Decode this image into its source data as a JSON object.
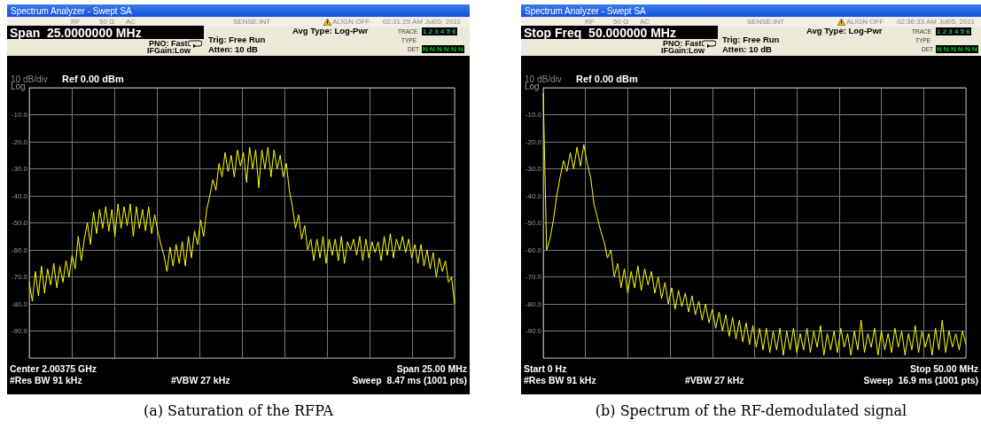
{
  "chart_data": [
    {
      "type": "line",
      "title": "(a) Saturation of the RFPA",
      "ylabel": "Log",
      "annotations": [
        "Spectrum Analyzer - Swept SA",
        "RF",
        "50 Ω",
        "AC",
        "SENSE:INT",
        "ALIGN OFF",
        "02:31:25 AM Jul05, 2011",
        "Span  25.0000000 MHz",
        "PNO: Fast",
        "IFGain:Low",
        "Trig: Free Run",
        "Atten: 10 dB",
        "Avg Type: Log-Pwr",
        "TRACE",
        "1 2 3 4 5 6",
        "TYPE",
        "DET",
        "N N N N N N",
        "10 dB/div",
        "Ref 0.00 dBm",
        "Center 2.00375 GHz",
        "Span 25.00 MHz",
        "#Res BW 91 kHz",
        "#VBW 27 kHz",
        "Sweep  8.47 ms (1001 pts)"
      ],
      "categories": [
        null,
        null,
        null,
        null,
        null,
        null,
        null,
        null,
        null,
        null,
        null,
        null,
        null,
        null,
        null,
        null,
        null,
        null,
        null,
        null,
        null,
        null,
        null,
        null,
        null,
        null,
        null,
        null,
        null,
        null,
        null,
        null,
        null,
        null,
        null,
        null,
        null,
        null,
        null,
        null,
        null,
        null,
        null,
        null,
        null,
        null,
        null,
        null,
        null,
        null,
        null,
        null,
        null,
        null,
        null,
        null,
        null,
        null,
        null,
        null,
        null,
        null,
        null,
        null,
        null,
        null,
        null,
        null,
        null,
        null,
        null,
        null,
        null,
        null,
        null,
        null,
        null,
        null,
        null,
        null,
        null,
        null,
        null,
        null,
        null,
        null,
        null,
        null,
        null,
        null,
        null,
        null,
        null,
        null,
        null,
        null,
        null,
        null,
        null,
        null,
        null,
        null,
        null,
        null,
        null,
        null,
        null,
        null,
        null,
        null,
        null,
        null,
        null,
        null,
        null,
        null,
        null,
        null,
        null,
        null,
        null,
        null,
        null,
        null,
        null,
        null,
        null,
        null,
        null,
        null,
        null,
        null,
        null,
        null,
        null,
        null,
        null,
        null,
        null,
        null
      ],
      "series": [
        {
          "color": "#ffff00",
          "values": [
            -72,
            -79,
            -68,
            -77,
            -66,
            -76,
            -67,
            -73,
            -65,
            -74,
            -66,
            -72,
            -64,
            -70,
            -62,
            -67,
            -55,
            -64,
            -56,
            -50,
            -58,
            -46,
            -54,
            -45,
            -52,
            -44,
            -53,
            -45,
            -55,
            -43,
            -52,
            -44,
            -51,
            -43,
            -55,
            -44,
            -52,
            -45,
            -53,
            -44,
            -54,
            -47,
            -53,
            -58,
            -62,
            -68,
            -59,
            -66,
            -58,
            -65,
            -57,
            -66,
            -55,
            -63,
            -53,
            -58,
            -49,
            -55,
            -45,
            -40,
            -34,
            -38,
            -28,
            -33,
            -24,
            -31,
            -25,
            -33,
            -23,
            -29,
            -24,
            -35,
            -22,
            -30,
            -23,
            -37,
            -23,
            -30,
            -22,
            -33,
            -23,
            -30,
            -25,
            -33,
            -28,
            -38,
            -44,
            -52,
            -47,
            -56,
            -51,
            -60,
            -56,
            -64,
            -56,
            -63,
            -55,
            -65,
            -56,
            -62,
            -56,
            -64,
            -55,
            -65,
            -57,
            -60,
            -56,
            -62,
            -55,
            -64,
            -56,
            -63,
            -57,
            -61,
            -57,
            -64,
            -55,
            -62,
            -54,
            -63,
            -56,
            -60,
            -55,
            -61,
            -56,
            -63,
            -58,
            -65,
            -58,
            -66,
            -60,
            -67,
            -61,
            -70,
            -63,
            -68,
            -64,
            -72,
            -70,
            -80
          ]
        }
      ],
      "ylim": [
        -100,
        0
      ],
      "yticks": [
        {
          "value": 0,
          "label": null
        },
        {
          "value": -10,
          "label": "-10.0"
        },
        {
          "value": -20,
          "label": "-20.0"
        },
        {
          "value": -30,
          "label": "-30.0"
        },
        {
          "value": -40,
          "label": "-40.0"
        },
        {
          "value": -50,
          "label": "-50.0"
        },
        {
          "value": -60,
          "label": "-60.0"
        },
        {
          "value": -70,
          "label": "-70.0"
        },
        {
          "value": -80,
          "label": "-80.0"
        },
        {
          "value": -90,
          "label": "-90.0"
        },
        {
          "value": -100,
          "label": null
        }
      ],
      "tick_labels": "y",
      "grid": true,
      "line_style": "solid"
    },
    {
      "type": "line",
      "title": "(b) Spectrum of the RF-demodulated signal",
      "ylabel": "Log",
      "annotations": [
        "Spectrum Analyzer - Swept SA",
        "RF",
        "50 Ω",
        "AC",
        "SENSE:INT",
        "ALIGN OFF",
        "02:36:33 AM Jul05, 2011",
        "Stop Freq  50.000000 MHz",
        "PNO: Fast",
        "IFGain:Low",
        "Trig: Free Run",
        "Atten: 10 dB",
        "Avg Type: Log-Pwr",
        "TRACE",
        "1 2 3 4 5 6",
        "TYPE",
        "DET",
        "N N N N N N",
        "10 dB/div",
        "Ref 0.00 dBm",
        "Start 0 Hz",
        "Stop 50.00 MHz",
        "#Res BW 91 kHz",
        "#VBW 27 kHz",
        "Sweep  16.9 ms (1001 pts)"
      ],
      "categories": [
        null,
        null,
        null,
        null,
        null,
        null,
        null,
        null,
        null,
        null,
        null,
        null,
        null,
        null,
        null,
        null,
        null,
        null,
        null,
        null,
        null,
        null,
        null,
        null,
        null,
        null,
        null,
        null,
        null,
        null,
        null,
        null,
        null,
        null,
        null,
        null,
        null,
        null,
        null,
        null,
        null,
        null,
        null,
        null,
        null,
        null,
        null,
        null,
        null,
        null,
        null,
        null,
        null,
        null,
        null,
        null,
        null,
        null,
        null,
        null,
        null,
        null,
        null,
        null,
        null,
        null,
        null,
        null,
        null,
        null,
        null,
        null,
        null,
        null,
        null,
        null,
        null,
        null,
        null,
        null,
        null,
        null,
        null,
        null,
        null,
        null,
        null,
        null,
        null,
        null,
        null,
        null,
        null,
        null,
        null,
        null,
        null,
        null,
        null,
        null,
        null,
        null,
        null,
        null,
        null,
        null,
        null,
        null,
        null,
        null,
        null,
        null,
        null,
        null,
        null,
        null,
        null,
        null,
        null,
        null,
        null,
        null,
        null,
        null,
        null,
        null
      ],
      "series": [
        {
          "color": "#ffff00",
          "values": [
            -2,
            -60,
            -56,
            -49,
            -40,
            -33,
            -27,
            -31,
            -24,
            -30,
            -22,
            -29,
            -21,
            -28,
            -33,
            -43,
            -48,
            -53,
            -57,
            -63,
            -60,
            -70,
            -65,
            -74,
            -67,
            -76,
            -68,
            -74,
            -66,
            -75,
            -67,
            -73,
            -68,
            -76,
            -70,
            -78,
            -72,
            -80,
            -74,
            -82,
            -75,
            -81,
            -76,
            -83,
            -77,
            -84,
            -79,
            -86,
            -80,
            -87,
            -82,
            -89,
            -83,
            -90,
            -84,
            -92,
            -85,
            -93,
            -86,
            -94,
            -87,
            -95,
            -88,
            -96,
            -89,
            -97,
            -89,
            -98,
            -90,
            -97,
            -89,
            -99,
            -90,
            -97,
            -89,
            -98,
            -91,
            -97,
            -89,
            -98,
            -90,
            -96,
            -88,
            -99,
            -91,
            -97,
            -90,
            -98,
            -89,
            -96,
            -91,
            -99,
            -90,
            -97,
            -86,
            -98,
            -91,
            -96,
            -89,
            -99,
            -90,
            -97,
            -91,
            -98,
            -89,
            -96,
            -90,
            -99,
            -91,
            -97,
            -88,
            -98,
            -90,
            -96,
            -91,
            -99,
            -89,
            -97,
            -86,
            -98,
            -90,
            -96,
            -91,
            -97,
            -90,
            -95
          ]
        }
      ],
      "ylim": [
        -100,
        0
      ],
      "yticks": [
        {
          "value": 0,
          "label": null
        },
        {
          "value": -10,
          "label": "-10.0"
        },
        {
          "value": -20,
          "label": "-20.0"
        },
        {
          "value": -30,
          "label": "-30.0"
        },
        {
          "value": -40,
          "label": "-40.0"
        },
        {
          "value": -50,
          "label": "-50.0"
        },
        {
          "value": -60,
          "label": "-60.0"
        },
        {
          "value": -70,
          "label": "-70.0"
        },
        {
          "value": -80,
          "label": "-80.0"
        },
        {
          "value": -90,
          "label": "-90.0"
        },
        {
          "value": -100,
          "label": null
        }
      ],
      "tick_labels": "y",
      "grid": true,
      "line_style": "solid"
    }
  ]
}
